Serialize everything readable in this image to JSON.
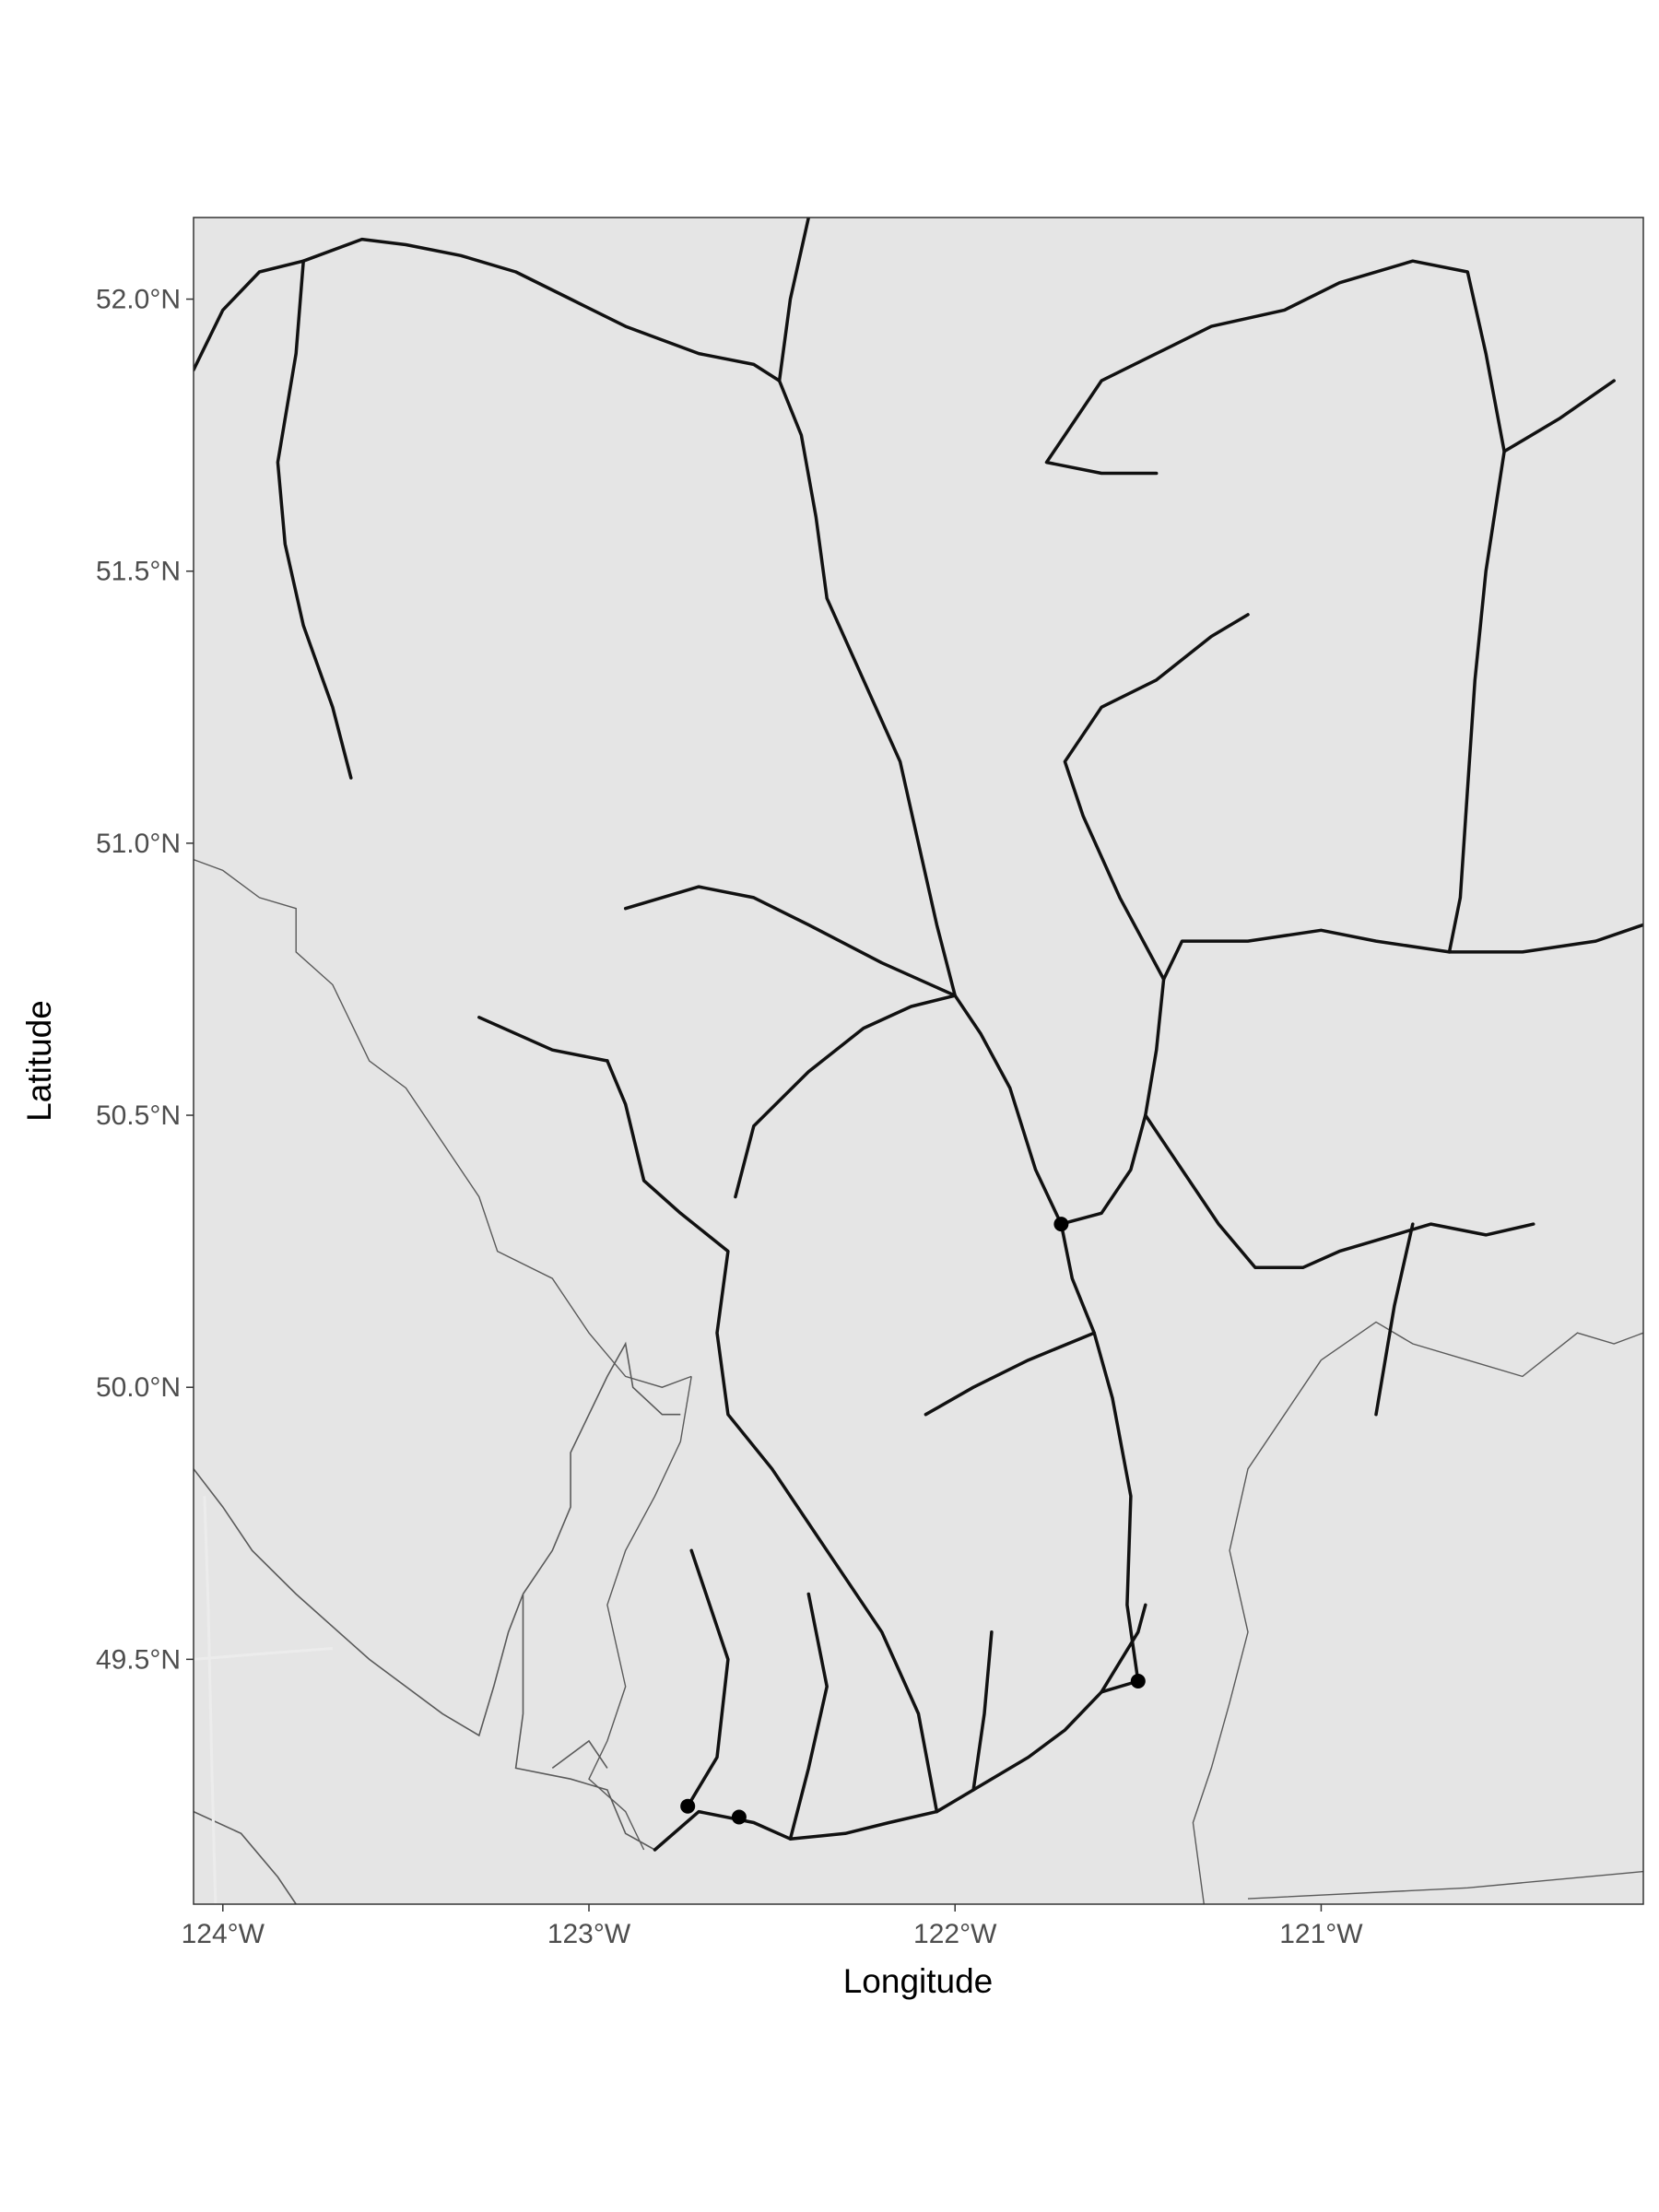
{
  "chart_data": {
    "type": "map",
    "xlabel": "Longitude",
    "ylabel": "Latitude",
    "xlim": [
      -124.08,
      -120.12
    ],
    "ylim": [
      49.05,
      52.15
    ],
    "x_ticks": [
      {
        "value": -124,
        "label": "124°W"
      },
      {
        "value": -123,
        "label": "123°W"
      },
      {
        "value": -122,
        "label": "122°W"
      },
      {
        "value": -121,
        "label": "121°W"
      }
    ],
    "y_ticks": [
      {
        "value": 49.5,
        "label": "49.5°N"
      },
      {
        "value": 50.0,
        "label": "50.0°N"
      },
      {
        "value": 50.5,
        "label": "50.5°N"
      },
      {
        "value": 51.0,
        "label": "51.0°N"
      },
      {
        "value": 51.5,
        "label": "51.5°N"
      },
      {
        "value": 52.0,
        "label": "52.0°N"
      }
    ],
    "grid": false,
    "legend": "none",
    "colors": {
      "land": "#e5e5e5",
      "water": "#ffffff",
      "boundary": "#5a5a5a",
      "river": "#111111",
      "station": "#000000",
      "road": "#ececec"
    },
    "stations": [
      {
        "lon": -121.71,
        "lat": 50.3
      },
      {
        "lon": -121.5,
        "lat": 49.46
      },
      {
        "lon": -122.73,
        "lat": 49.23
      },
      {
        "lon": -122.59,
        "lat": 49.21
      }
    ],
    "rivers": [
      [
        [
          -122.82,
          49.15
        ],
        [
          -122.7,
          49.22
        ],
        [
          -122.55,
          49.2
        ],
        [
          -122.45,
          49.17
        ],
        [
          -122.3,
          49.18
        ],
        [
          -122.18,
          49.2
        ],
        [
          -122.05,
          49.22
        ],
        [
          -121.95,
          49.26
        ],
        [
          -121.8,
          49.32
        ],
        [
          -121.7,
          49.37
        ],
        [
          -121.6,
          49.44
        ],
        [
          -121.5,
          49.46
        ]
      ],
      [
        [
          -121.5,
          49.46
        ],
        [
          -121.53,
          49.6
        ],
        [
          -121.52,
          49.8
        ],
        [
          -121.57,
          49.98
        ],
        [
          -121.62,
          50.1
        ],
        [
          -121.68,
          50.2
        ],
        [
          -121.71,
          50.3
        ]
      ],
      [
        [
          -121.71,
          50.3
        ],
        [
          -121.78,
          50.4
        ],
        [
          -121.85,
          50.55
        ],
        [
          -121.93,
          50.65
        ],
        [
          -122.0,
          50.72
        ],
        [
          -122.05,
          50.85
        ],
        [
          -122.1,
          51.0
        ],
        [
          -122.15,
          51.15
        ],
        [
          -122.25,
          51.3
        ],
        [
          -122.35,
          51.45
        ],
        [
          -122.38,
          51.6
        ],
        [
          -122.42,
          51.75
        ],
        [
          -122.48,
          51.85
        ]
      ],
      [
        [
          -122.48,
          51.85
        ],
        [
          -122.55,
          51.88
        ],
        [
          -122.7,
          51.9
        ],
        [
          -122.9,
          51.95
        ],
        [
          -123.05,
          52.0
        ],
        [
          -123.2,
          52.05
        ],
        [
          -123.35,
          52.08
        ],
        [
          -123.5,
          52.1
        ],
        [
          -123.62,
          52.11
        ],
        [
          -123.78,
          52.07
        ]
      ],
      [
        [
          -123.78,
          52.07
        ],
        [
          -123.9,
          52.05
        ],
        [
          -124.0,
          51.98
        ],
        [
          -124.08,
          51.87
        ]
      ],
      [
        [
          -122.48,
          51.85
        ],
        [
          -122.45,
          52.0
        ],
        [
          -122.4,
          52.15
        ]
      ],
      [
        [
          -123.78,
          52.07
        ],
        [
          -123.8,
          51.9
        ],
        [
          -123.85,
          51.7
        ],
        [
          -123.83,
          51.55
        ],
        [
          -123.78,
          51.4
        ],
        [
          -123.7,
          51.25
        ],
        [
          -123.65,
          51.12
        ]
      ],
      [
        [
          -122.0,
          50.72
        ],
        [
          -122.12,
          50.7
        ],
        [
          -122.25,
          50.66
        ],
        [
          -122.4,
          50.58
        ],
        [
          -122.55,
          50.48
        ],
        [
          -122.6,
          50.35
        ]
      ],
      [
        [
          -122.0,
          50.72
        ],
        [
          -122.2,
          50.78
        ],
        [
          -122.4,
          50.85
        ],
        [
          -122.55,
          50.9
        ],
        [
          -122.7,
          50.92
        ],
        [
          -122.9,
          50.88
        ]
      ],
      [
        [
          -121.71,
          50.3
        ],
        [
          -121.6,
          50.32
        ],
        [
          -121.52,
          50.4
        ],
        [
          -121.48,
          50.5
        ],
        [
          -121.45,
          50.62
        ],
        [
          -121.43,
          50.75
        ],
        [
          -121.38,
          50.82
        ],
        [
          -121.2,
          50.82
        ],
        [
          -121.0,
          50.84
        ],
        [
          -120.85,
          50.82
        ],
        [
          -120.65,
          50.8
        ],
        [
          -120.45,
          50.8
        ],
        [
          -120.25,
          50.82
        ],
        [
          -120.12,
          50.85
        ]
      ],
      [
        [
          -121.43,
          50.75
        ],
        [
          -121.55,
          50.9
        ],
        [
          -121.65,
          51.05
        ],
        [
          -121.7,
          51.15
        ],
        [
          -121.6,
          51.25
        ],
        [
          -121.45,
          51.3
        ],
        [
          -121.3,
          51.38
        ],
        [
          -121.2,
          51.42
        ]
      ],
      [
        [
          -121.48,
          50.5
        ],
        [
          -121.38,
          50.4
        ],
        [
          -121.28,
          50.3
        ],
        [
          -121.18,
          50.22
        ],
        [
          -121.05,
          50.22
        ],
        [
          -120.95,
          50.25
        ],
        [
          -120.8,
          50.28
        ],
        [
          -120.7,
          50.3
        ],
        [
          -120.55,
          50.28
        ],
        [
          -120.42,
          50.3
        ]
      ],
      [
        [
          -120.75,
          50.3
        ],
        [
          -120.8,
          50.15
        ],
        [
          -120.85,
          49.95
        ]
      ],
      [
        [
          -121.6,
          49.44
        ],
        [
          -121.5,
          49.55
        ],
        [
          -121.48,
          49.6
        ]
      ],
      [
        [
          -122.05,
          49.22
        ],
        [
          -122.1,
          49.4
        ],
        [
          -122.2,
          49.55
        ],
        [
          -122.35,
          49.7
        ],
        [
          -122.5,
          49.85
        ],
        [
          -122.62,
          49.95
        ],
        [
          -122.65,
          50.1
        ],
        [
          -122.62,
          50.25
        ],
        [
          -122.75,
          50.32
        ],
        [
          -122.85,
          50.38
        ],
        [
          -122.9,
          50.52
        ],
        [
          -122.95,
          50.6
        ]
      ],
      [
        [
          -122.95,
          50.6
        ],
        [
          -123.1,
          50.62
        ],
        [
          -123.3,
          50.68
        ]
      ],
      [
        [
          -122.73,
          49.23
        ],
        [
          -122.65,
          49.32
        ],
        [
          -122.62,
          49.5
        ],
        [
          -122.72,
          49.7
        ]
      ],
      [
        [
          -122.45,
          49.17
        ],
        [
          -122.4,
          49.3
        ],
        [
          -122.35,
          49.45
        ],
        [
          -122.4,
          49.62
        ]
      ],
      [
        [
          -121.95,
          49.26
        ],
        [
          -121.92,
          49.4
        ],
        [
          -121.9,
          49.55
        ]
      ],
      [
        [
          -121.62,
          50.1
        ],
        [
          -121.8,
          50.05
        ],
        [
          -121.95,
          50.0
        ],
        [
          -122.08,
          49.95
        ]
      ],
      [
        [
          -120.2,
          51.85
        ],
        [
          -120.35,
          51.78
        ],
        [
          -120.5,
          51.72
        ],
        [
          -120.55,
          51.5
        ],
        [
          -120.58,
          51.3
        ],
        [
          -120.6,
          51.1
        ],
        [
          -120.62,
          50.9
        ],
        [
          -120.65,
          50.8
        ]
      ],
      [
        [
          -120.5,
          51.72
        ],
        [
          -120.55,
          51.9
        ],
        [
          -120.6,
          52.05
        ],
        [
          -120.75,
          52.07
        ],
        [
          -120.95,
          52.03
        ],
        [
          -121.1,
          51.98
        ],
        [
          -121.3,
          51.95
        ],
        [
          -121.45,
          51.9
        ],
        [
          -121.6,
          51.85
        ],
        [
          -121.7,
          51.75
        ],
        [
          -121.75,
          51.7
        ],
        [
          -121.6,
          51.68
        ],
        [
          -121.45,
          51.68
        ]
      ]
    ],
    "coastline": [
      [
        [
          -124.08,
          49.85
        ],
        [
          -124.0,
          49.78
        ],
        [
          -123.92,
          49.7
        ],
        [
          -123.8,
          49.62
        ],
        [
          -123.6,
          49.5
        ],
        [
          -123.4,
          49.4
        ],
        [
          -123.3,
          49.36
        ],
        [
          -123.26,
          49.45
        ],
        [
          -123.22,
          49.55
        ],
        [
          -123.18,
          49.62
        ],
        [
          -123.18,
          49.4
        ],
        [
          -123.2,
          49.3
        ],
        [
          -123.05,
          49.28
        ],
        [
          -122.95,
          49.26
        ],
        [
          -122.9,
          49.18
        ],
        [
          -122.82,
          49.15
        ]
      ],
      [
        [
          -124.08,
          49.22
        ],
        [
          -123.95,
          49.18
        ],
        [
          -123.85,
          49.1
        ],
        [
          -123.8,
          49.05
        ]
      ],
      [
        [
          -123.18,
          49.62
        ],
        [
          -123.1,
          49.7
        ],
        [
          -123.05,
          49.78
        ],
        [
          -123.05,
          49.88
        ],
        [
          -123.0,
          49.95
        ],
        [
          -122.95,
          50.02
        ],
        [
          -122.9,
          50.08
        ],
        [
          -122.88,
          50.0
        ],
        [
          -122.8,
          49.95
        ],
        [
          -122.75,
          49.95
        ]
      ],
      [
        [
          -123.1,
          49.3
        ],
        [
          -123.0,
          49.35
        ],
        [
          -122.95,
          49.3
        ]
      ]
    ],
    "admin_boundaries": [
      [
        [
          -124.08,
          50.97
        ],
        [
          -124.0,
          50.95
        ],
        [
          -123.9,
          50.9
        ],
        [
          -123.8,
          50.88
        ],
        [
          -123.8,
          50.8
        ],
        [
          -123.7,
          50.74
        ],
        [
          -123.6,
          50.6
        ],
        [
          -123.5,
          50.55
        ],
        [
          -123.4,
          50.45
        ],
        [
          -123.3,
          50.35
        ],
        [
          -123.25,
          50.25
        ],
        [
          -123.1,
          50.2
        ],
        [
          -123.0,
          50.1
        ],
        [
          -122.9,
          50.02
        ],
        [
          -122.8,
          50.0
        ],
        [
          -122.72,
          50.02
        ]
      ],
      [
        [
          -122.72,
          50.02
        ],
        [
          -122.75,
          49.9
        ],
        [
          -122.82,
          49.8
        ],
        [
          -122.9,
          49.7
        ],
        [
          -122.95,
          49.6
        ],
        [
          -122.9,
          49.45
        ],
        [
          -122.95,
          49.35
        ],
        [
          -123.0,
          49.28
        ],
        [
          -122.9,
          49.22
        ],
        [
          -122.85,
          49.15
        ]
      ],
      [
        [
          -121.0,
          50.05
        ],
        [
          -121.1,
          49.95
        ],
        [
          -121.2,
          49.85
        ],
        [
          -121.25,
          49.7
        ],
        [
          -121.2,
          49.55
        ],
        [
          -121.25,
          49.42
        ],
        [
          -121.3,
          49.3
        ],
        [
          -121.35,
          49.2
        ],
        [
          -121.32,
          49.05
        ]
      ],
      [
        [
          -121.0,
          50.05
        ],
        [
          -120.85,
          50.12
        ],
        [
          -120.75,
          50.08
        ],
        [
          -120.6,
          50.05
        ],
        [
          -120.45,
          50.02
        ],
        [
          -120.3,
          50.1
        ],
        [
          -120.2,
          50.08
        ],
        [
          -120.12,
          50.1
        ]
      ],
      [
        [
          -121.2,
          49.06
        ],
        [
          -120.6,
          49.08
        ],
        [
          -120.12,
          49.11
        ]
      ]
    ],
    "roads": [
      [
        [
          -124.02,
          49.05
        ],
        [
          -124.03,
          49.3
        ],
        [
          -124.04,
          49.6
        ],
        [
          -124.05,
          49.8
        ]
      ],
      [
        [
          -124.08,
          49.5
        ],
        [
          -123.9,
          49.51
        ],
        [
          -123.7,
          49.52
        ]
      ]
    ]
  }
}
